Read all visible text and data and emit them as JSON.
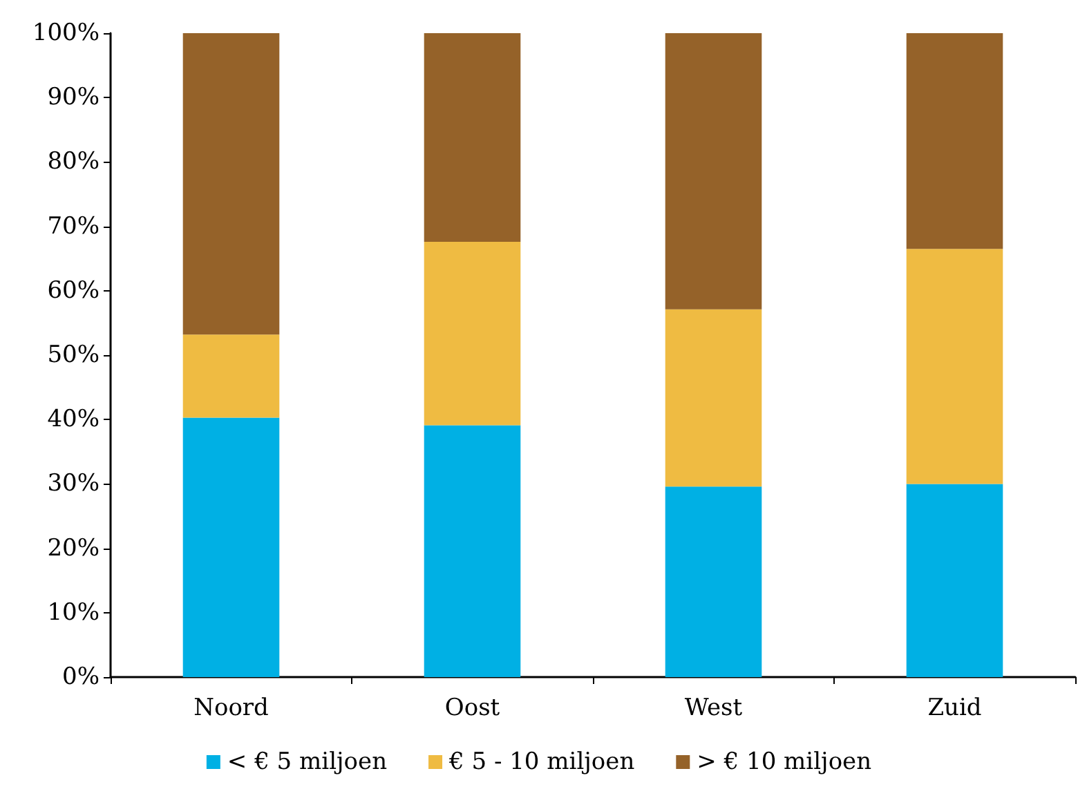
{
  "chart_data": {
    "type": "bar",
    "stacked": true,
    "categories": [
      "Noord",
      "Oost",
      "West",
      "Zuid"
    ],
    "series": [
      {
        "name": "< € 5 miljoen",
        "color": "#00b0e4",
        "values": [
          40.3,
          39.1,
          29.6,
          30.0
        ]
      },
      {
        "name": "€ 5 - 10 miljoen",
        "color": "#efbb42",
        "values": [
          12.9,
          28.5,
          27.5,
          36.5
        ]
      },
      {
        "name": "> € 10 miljoen",
        "color": "#956229",
        "values": [
          46.8,
          32.4,
          42.9,
          33.5
        ]
      }
    ],
    "ylim": [
      0,
      100
    ],
    "yticks": [
      {
        "value": 0,
        "label": "0%"
      },
      {
        "value": 10,
        "label": "10%"
      },
      {
        "value": 20,
        "label": "20%"
      },
      {
        "value": 30,
        "label": "30%"
      },
      {
        "value": 40,
        "label": "40%"
      },
      {
        "value": 50,
        "label": "50%"
      },
      {
        "value": 60,
        "label": "60%"
      },
      {
        "value": 70,
        "label": "70%"
      },
      {
        "value": 80,
        "label": "80%"
      },
      {
        "value": 90,
        "label": "90%"
      },
      {
        "value": 100,
        "label": "100%"
      }
    ],
    "grid": false,
    "legend": "bottom"
  }
}
